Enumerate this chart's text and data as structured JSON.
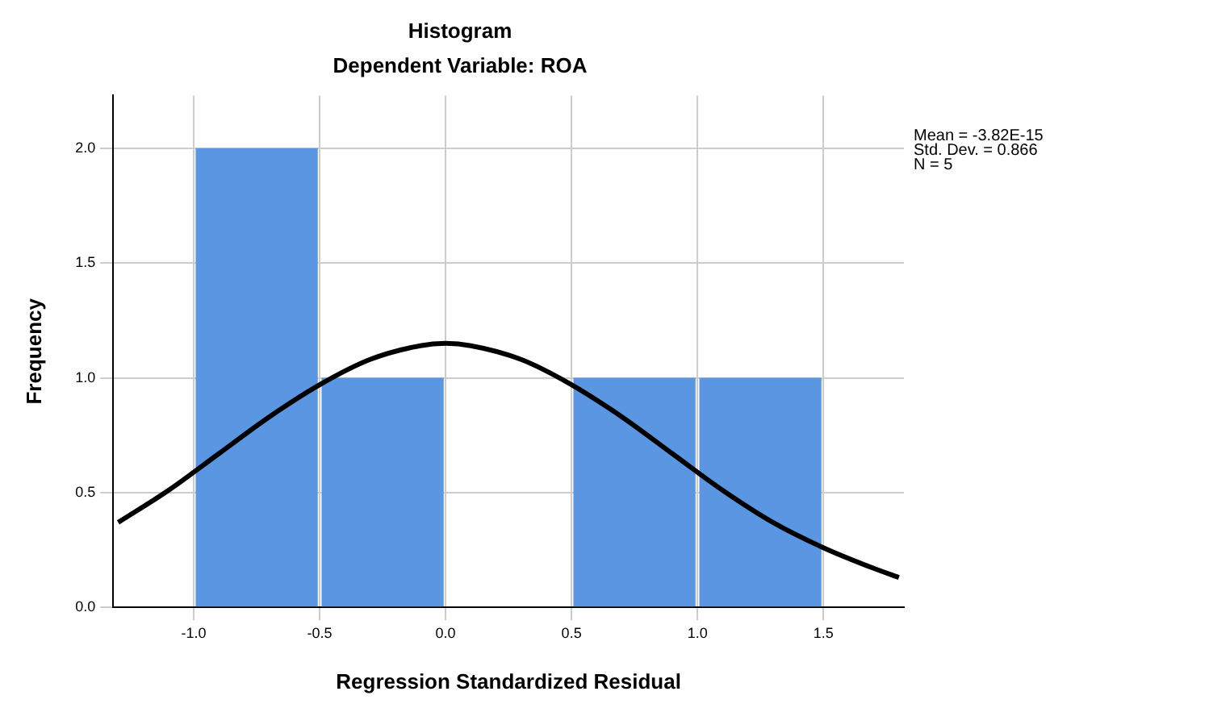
{
  "chart_data": {
    "type": "histogram",
    "title": "Histogram",
    "subtitle": "Dependent Variable: ROA",
    "xlabel": "Regression Standardized Residual",
    "ylabel": "Frequency",
    "bins": [
      -1.0,
      -0.5,
      0.0,
      0.5,
      1.0,
      1.5
    ],
    "values": [
      2,
      1,
      0,
      1,
      1
    ],
    "color": "#5b96e3",
    "series": [
      {
        "type": "line",
        "color": "#000000",
        "x": [
          -1.3,
          -1.1,
          -0.9,
          -0.7,
          -0.5,
          -0.3,
          -0.1,
          0,
          0.1,
          0.3,
          0.5,
          0.7,
          0.9,
          1.1,
          1.3,
          1.5,
          1.7,
          1.8
        ],
        "values": [
          0.37,
          0.51,
          0.67,
          0.83,
          0.97,
          1.08,
          1.14,
          1.15,
          1.14,
          1.08,
          0.97,
          0.83,
          0.67,
          0.51,
          0.37,
          0.26,
          0.17,
          0.13
        ]
      }
    ],
    "xlim": [
      -1.32,
      1.82
    ],
    "xticks": [
      {
        "value": -1,
        "label": "-1.0"
      },
      {
        "value": -0.5,
        "label": "-0.5"
      },
      {
        "value": 0,
        "label": "0.0"
      },
      {
        "value": 0.5,
        "label": "0.5"
      },
      {
        "value": 1,
        "label": "1.0"
      },
      {
        "value": 1.5,
        "label": "1.5"
      }
    ],
    "ylim": [
      0,
      2.23
    ],
    "yticks": [
      {
        "value": 0,
        "label": "0.0"
      },
      {
        "value": 0.5,
        "label": "0.5"
      },
      {
        "value": 1,
        "label": "1.0"
      },
      {
        "value": 1.5,
        "label": "1.5"
      },
      {
        "value": 2,
        "label": "2.0"
      }
    ],
    "grid": true,
    "legend": false,
    "annotations": [
      "Mean = -3.82E-15",
      "Std. Dev. = 0.866",
      "N = 5"
    ]
  }
}
